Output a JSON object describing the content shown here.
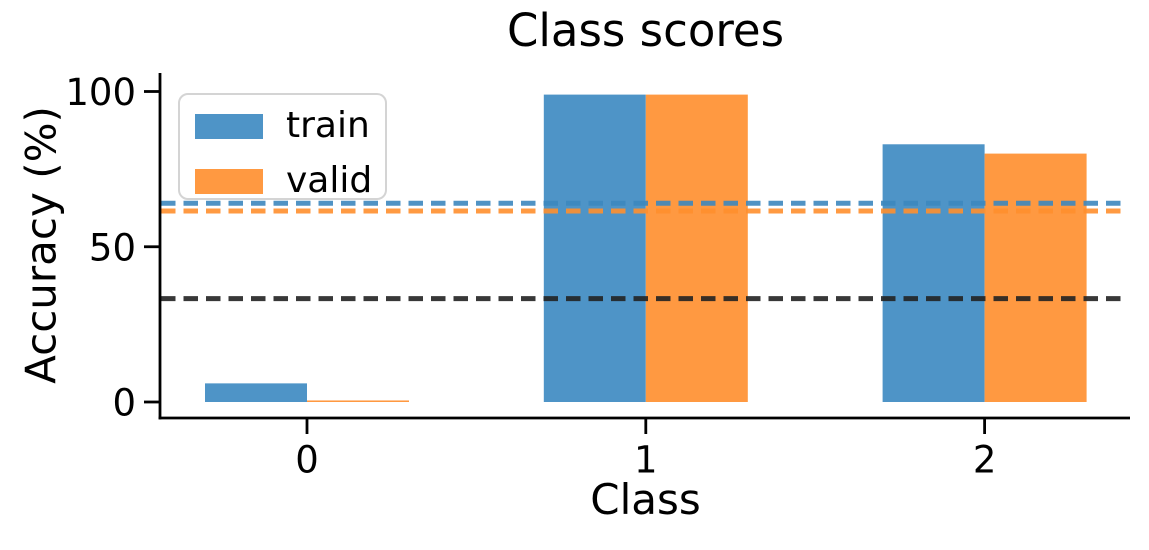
{
  "chart_data": {
    "type": "bar",
    "title": "Class scores",
    "xlabel": "Class",
    "ylabel": "Accuracy (%)",
    "categories": [
      "0",
      "1",
      "2"
    ],
    "series": [
      {
        "name": "train",
        "color": "#4E94C7",
        "values": [
          6,
          99,
          83
        ]
      },
      {
        "name": "valid",
        "color": "#FF9941",
        "values": [
          0.5,
          99,
          80
        ]
      }
    ],
    "hlines": [
      {
        "name": "train-mean-line",
        "value": 64,
        "color": "#3D87BE",
        "style": "dashed"
      },
      {
        "name": "valid-mean-line",
        "value": 61.5,
        "color": "#FF8F2E",
        "style": "dashed"
      },
      {
        "name": "chance-line",
        "value": 33.3,
        "color": "#222222",
        "style": "dashed"
      }
    ],
    "yticks": [
      0,
      50,
      100
    ],
    "ylim": [
      -5.3,
      105.3
    ],
    "xlim": [
      -0.43,
      2.43
    ],
    "grid": false,
    "legend_position": "upper-left",
    "axis_color": "#000000",
    "background_color": "#ffffff"
  }
}
